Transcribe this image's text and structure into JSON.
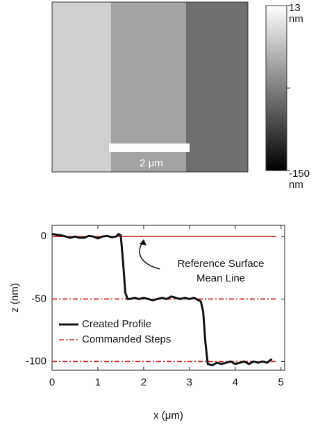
{
  "image": {
    "scale_bar_label": "2 μm"
  },
  "colorbar": {
    "lim": [
      -150,
      13
    ],
    "ticks": [
      13,
      {
        "value": -68.5,
        "label": null
      },
      -150
    ],
    "unit": "nm"
  },
  "chart_data": {
    "type": "line",
    "xlabel": "x (μm)",
    "ylabel": "z (nm)",
    "xlim": [
      0,
      5.08
    ],
    "ylim": [
      -107,
      9
    ],
    "xticks": [
      0,
      1,
      2,
      3,
      4,
      5
    ],
    "yticks": [
      0,
      -50,
      -100
    ],
    "legend": "center left",
    "annotation": [
      "Reference Surface",
      "Mean Line"
    ],
    "series": [
      {
        "color": "#cc2222",
        "dash": "solid",
        "x": [
          0,
          4.9
        ],
        "values": [
          0,
          0
        ]
      },
      {
        "name": "Commanded Steps",
        "color": "#cc2222",
        "dash": "dashdot",
        "x": [
          0,
          4.9,
          null,
          0,
          4.9
        ],
        "values": [
          -50,
          -50,
          null,
          -100,
          -100
        ]
      },
      {
        "name": "Created Profile",
        "color": "#111111",
        "dash": "solid",
        "x": [
          0,
          0.1,
          0.2,
          0.3,
          0.4,
          0.5,
          0.6,
          0.7,
          0.8,
          0.9,
          1.0,
          1.1,
          1.2,
          1.3,
          1.4,
          1.45,
          1.5,
          1.55,
          1.6,
          1.65,
          1.7,
          1.8,
          1.9,
          2.0,
          2.1,
          2.2,
          2.3,
          2.4,
          2.5,
          2.6,
          2.7,
          2.8,
          2.9,
          3.0,
          3.1,
          3.2,
          3.25,
          3.3,
          3.35,
          3.4,
          3.5,
          3.6,
          3.7,
          3.8,
          3.9,
          4.0,
          4.1,
          4.2,
          4.3,
          4.4,
          4.5,
          4.6,
          4.7,
          4.8
        ],
        "values": [
          2,
          1.5,
          1,
          0,
          -1,
          0,
          -1,
          -1,
          0.5,
          0,
          -1.5,
          0,
          0.5,
          -0.5,
          0,
          2,
          1,
          -20,
          -45,
          -50,
          -50,
          -49,
          -50,
          -49,
          -50,
          -51,
          -50,
          -49,
          -50,
          -48,
          -49,
          -50,
          -49,
          -50,
          -49,
          -51,
          -52,
          -60,
          -85,
          -102,
          -103,
          -101,
          -102,
          -101,
          -100,
          -102,
          -101,
          -100,
          -102,
          -100,
          -101,
          -100,
          -101,
          -98
        ]
      }
    ]
  }
}
